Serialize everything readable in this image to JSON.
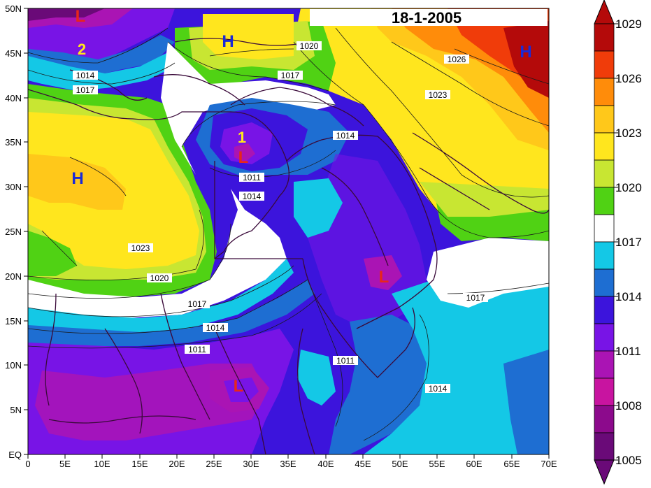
{
  "title": "18-1-2005",
  "x_tick_labels": [
    "0",
    "5E",
    "10E",
    "15E",
    "20E",
    "25E",
    "30E",
    "35E",
    "40E",
    "45E",
    "50E",
    "55E",
    "60E",
    "65E",
    "70E"
  ],
  "y_tick_labels": [
    "EQ",
    "5N",
    "10N",
    "15N",
    "20N",
    "25N",
    "30N",
    "35N",
    "40N",
    "45N",
    "50N"
  ],
  "legend": {
    "levels": [
      "1005",
      "1008",
      "1011",
      "1014",
      "1017",
      "1020",
      "1023",
      "1026",
      "1029"
    ],
    "colors": [
      "#6a0a78",
      "#aa14b4",
      "#7814e6",
      "#3c14dc",
      "#1e6ed2",
      "#14c8e6",
      "#ffffff",
      "#50d214",
      "#c8e632",
      "#ffe61e",
      "#ffc81a",
      "#ff8c0a",
      "#f03c0a",
      "#b40a0a"
    ]
  },
  "contour_labels": [
    "1014",
    "1017",
    "1020",
    "1017",
    "1026",
    "1023",
    "1014",
    "1011",
    "1014",
    "1023",
    "1020",
    "1017",
    "1014",
    "1011",
    "1011",
    "1014",
    "1017"
  ],
  "pressure_centers": [
    "L",
    "2",
    "H",
    "H",
    "1",
    "L",
    "L",
    "L",
    "H"
  ]
}
